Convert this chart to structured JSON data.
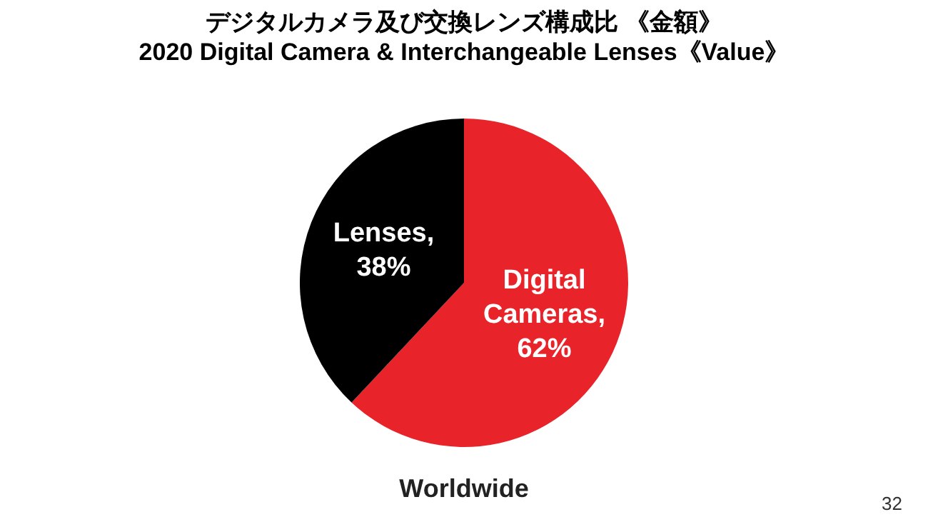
{
  "chart_data": {
    "type": "pie",
    "title": "デジタルカメラ及び交換レンズ構成比 《金額》",
    "subtitle": "2020 Digital Camera & Interchangeable Lenses《Value》",
    "categories": [
      "Digital Cameras",
      "Lenses"
    ],
    "values": [
      62,
      38
    ],
    "value_labels": [
      ", 62%",
      ", 38%"
    ],
    "colors": [
      "#e8242a",
      "#000000"
    ],
    "annotations": [
      "Worldwide",
      "32"
    ]
  }
}
